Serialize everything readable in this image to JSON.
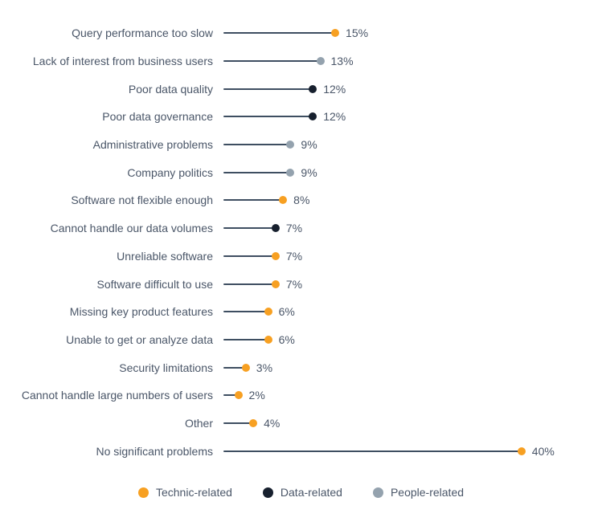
{
  "colors": {
    "technic": "#f7a022",
    "data": "#17202e",
    "people": "#94a2ae",
    "stem": "#3e4e61",
    "text": "#4a5668",
    "background": "#ffffff"
  },
  "chart_data": {
    "type": "lollipop",
    "title": "",
    "unit": "%",
    "xlim": [
      0,
      42
    ],
    "grid": false,
    "legend_position": "bottom-center",
    "rows": [
      {
        "label": "Query performance too slow",
        "value": 15,
        "group": "technic"
      },
      {
        "label": "Lack of interest from business users",
        "value": 13,
        "group": "people"
      },
      {
        "label": "Poor data quality",
        "value": 12,
        "group": "data"
      },
      {
        "label": "Poor data governance",
        "value": 12,
        "group": "data"
      },
      {
        "label": "Administrative problems",
        "value": 9,
        "group": "people"
      },
      {
        "label": "Company politics",
        "value": 9,
        "group": "people"
      },
      {
        "label": "Software not flexible enough",
        "value": 8,
        "group": "technic"
      },
      {
        "label": "Cannot handle our data volumes",
        "value": 7,
        "group": "data"
      },
      {
        "label": "Unreliable software",
        "value": 7,
        "group": "technic"
      },
      {
        "label": "Software difficult to use",
        "value": 7,
        "group": "technic"
      },
      {
        "label": "Missing key product features",
        "value": 6,
        "group": "technic"
      },
      {
        "label": "Unable to get or analyze data",
        "value": 6,
        "group": "technic"
      },
      {
        "label": "Security limitations",
        "value": 3,
        "group": "technic"
      },
      {
        "label": "Cannot handle large numbers of users",
        "value": 2,
        "group": "technic"
      },
      {
        "label": "Other",
        "value": 4,
        "group": "technic"
      },
      {
        "label": "No significant problems",
        "value": 40,
        "group": "technic"
      }
    ],
    "legend": [
      {
        "label": "Technic-related",
        "group": "technic"
      },
      {
        "label": "Data-related",
        "group": "data"
      },
      {
        "label": "People-related",
        "group": "people"
      }
    ]
  }
}
